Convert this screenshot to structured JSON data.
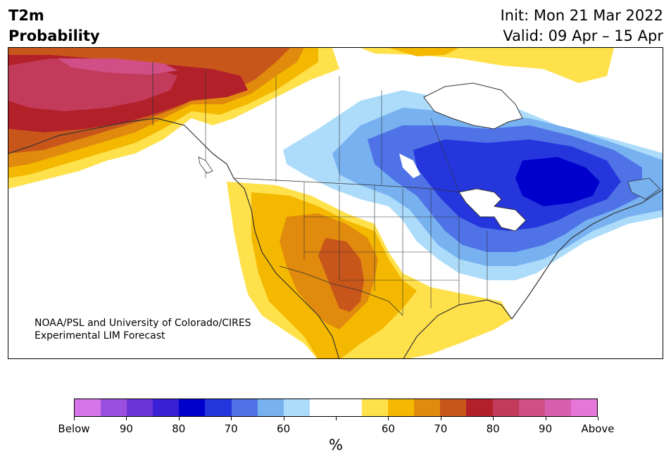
{
  "header": {
    "variable": "T2m",
    "subtitle": "Probability",
    "init": "Init: Mon 21 Mar 2022",
    "valid": "Valid: 09 Apr – 15 Apr"
  },
  "credit": {
    "line1": "NOAA/PSL and University of Colorado/CIRES",
    "line2": "Experimental LIM Forecast"
  },
  "colorbar": {
    "colors": [
      "#d575ea",
      "#9a4fe0",
      "#6b35d8",
      "#3a1fd5",
      "#0000cc",
      "#2536dd",
      "#4f72e6",
      "#77b1f0",
      "#addcfb",
      "#ffffff",
      "#ffffff",
      "#ffe14b",
      "#f4b800",
      "#e08a0e",
      "#c8561b",
      "#b2202a",
      "#c23b5a",
      "#cf4f86",
      "#d85fb0",
      "#e676d8"
    ],
    "labels": [
      "Below",
      "90",
      "80",
      "70",
      "60",
      "",
      "60",
      "70",
      "80",
      "90",
      "Above"
    ],
    "units": "%"
  },
  "map": {
    "region": "North America",
    "warm_colors": {
      "p60": "#ffe14b",
      "p70": "#f4b800",
      "p75": "#e08a0e",
      "p80": "#c8561b",
      "p85": "#b2202a",
      "p90": "#c23b5a",
      "p95": "#cf4f86"
    },
    "cold_colors": {
      "p60": "#addcfb",
      "p65": "#77b1f0",
      "p70": "#4f72e6",
      "p75": "#2536dd",
      "p80": "#0000cc"
    }
  }
}
